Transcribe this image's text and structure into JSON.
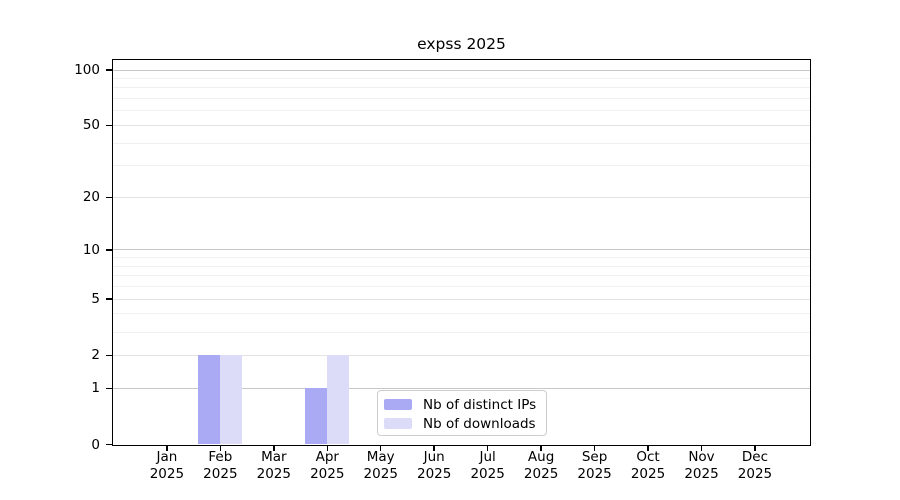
{
  "chart_data": {
    "type": "bar",
    "title": "expss 2025",
    "months": [
      "Jan",
      "Feb",
      "Mar",
      "Apr",
      "May",
      "Jun",
      "Jul",
      "Aug",
      "Sep",
      "Oct",
      "Nov",
      "Dec"
    ],
    "year": "2025",
    "series": [
      {
        "name": "Nb of distinct IPs",
        "color": "#aaaaf4",
        "values": [
          0,
          2,
          0,
          1,
          0,
          0,
          0,
          0,
          0,
          0,
          0,
          0
        ]
      },
      {
        "name": "Nb of downloads",
        "color": "#dcdcf8",
        "values": [
          0,
          2,
          0,
          2,
          0,
          0,
          0,
          0,
          0,
          0,
          0,
          0
        ]
      }
    ],
    "y_axis": {
      "scale": "log1p",
      "range": [
        0,
        100
      ],
      "ticks": [
        0,
        1,
        2,
        5,
        10,
        20,
        50,
        100
      ],
      "minor_gridlines": [
        3,
        4,
        6,
        7,
        8,
        9,
        30,
        40,
        60,
        70,
        80,
        90
      ]
    },
    "legend": {
      "position": "bottom-center",
      "entries": [
        "Nb of distinct IPs",
        "Nb of downloads"
      ]
    }
  }
}
